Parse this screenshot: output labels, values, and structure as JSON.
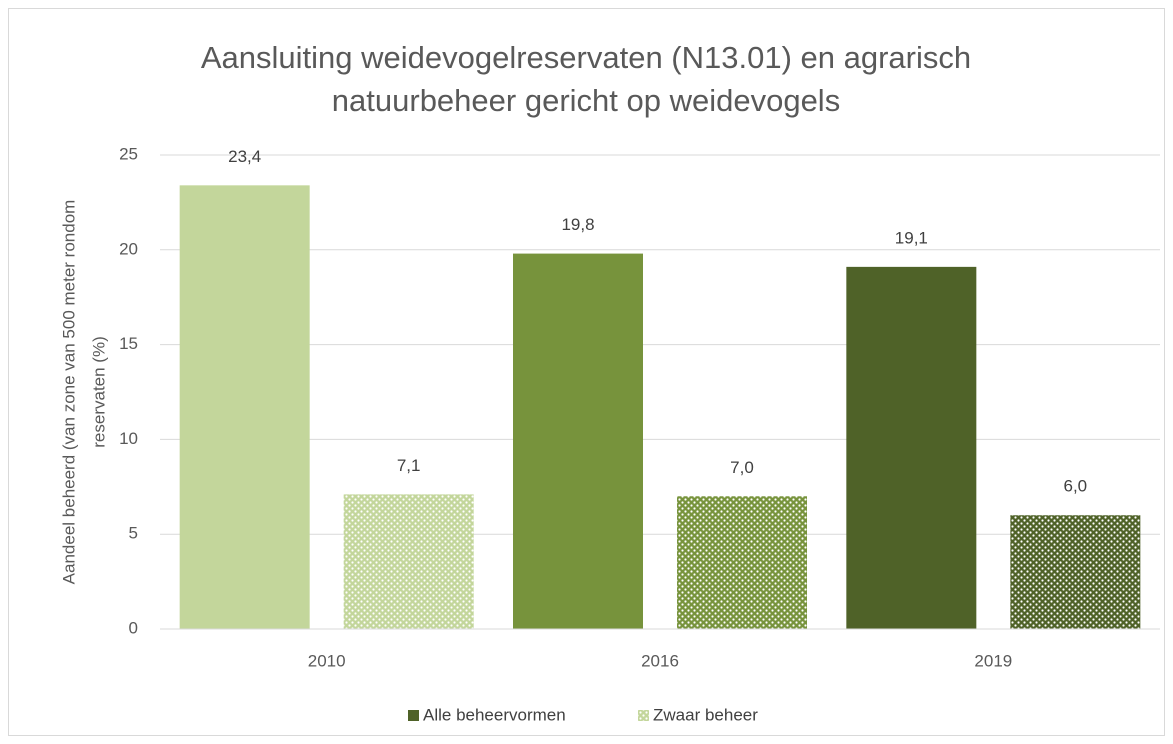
{
  "chart_data": {
    "type": "bar",
    "title": [
      "Aansluiting weidevogelreservaten (N13.01) en agrarisch",
      "natuurbeheer gericht op weidevogels"
    ],
    "y_label": [
      "Aandeel beheerd (van zone van 500 meter rondom",
      "reservaten (%)"
    ],
    "categories": [
      "2010",
      "2016",
      "2019"
    ],
    "series": [
      {
        "name": "Alle beheervormen",
        "color": "#4f6228",
        "colors": [
          "#c3d69b",
          "#77933c",
          "#4f6228"
        ],
        "pattern": "solid",
        "values": [
          23.4,
          19.8,
          19.1
        ],
        "value_labels": [
          "23,4",
          "19,8",
          "19,1"
        ]
      },
      {
        "name": "Zwaar beheer",
        "color": "#c3d69b",
        "colors": [
          "#c3d69b",
          "#77933c",
          "#4f6228"
        ],
        "pattern": "dotted",
        "values": [
          7.1,
          7.0,
          6.0
        ],
        "value_labels": [
          "7,1",
          "7,0",
          "6,0"
        ]
      }
    ],
    "ylim": [
      0,
      25
    ],
    "yticks": [
      0,
      5,
      10,
      15,
      20,
      25
    ],
    "grid": true,
    "legend": "bottom"
  }
}
